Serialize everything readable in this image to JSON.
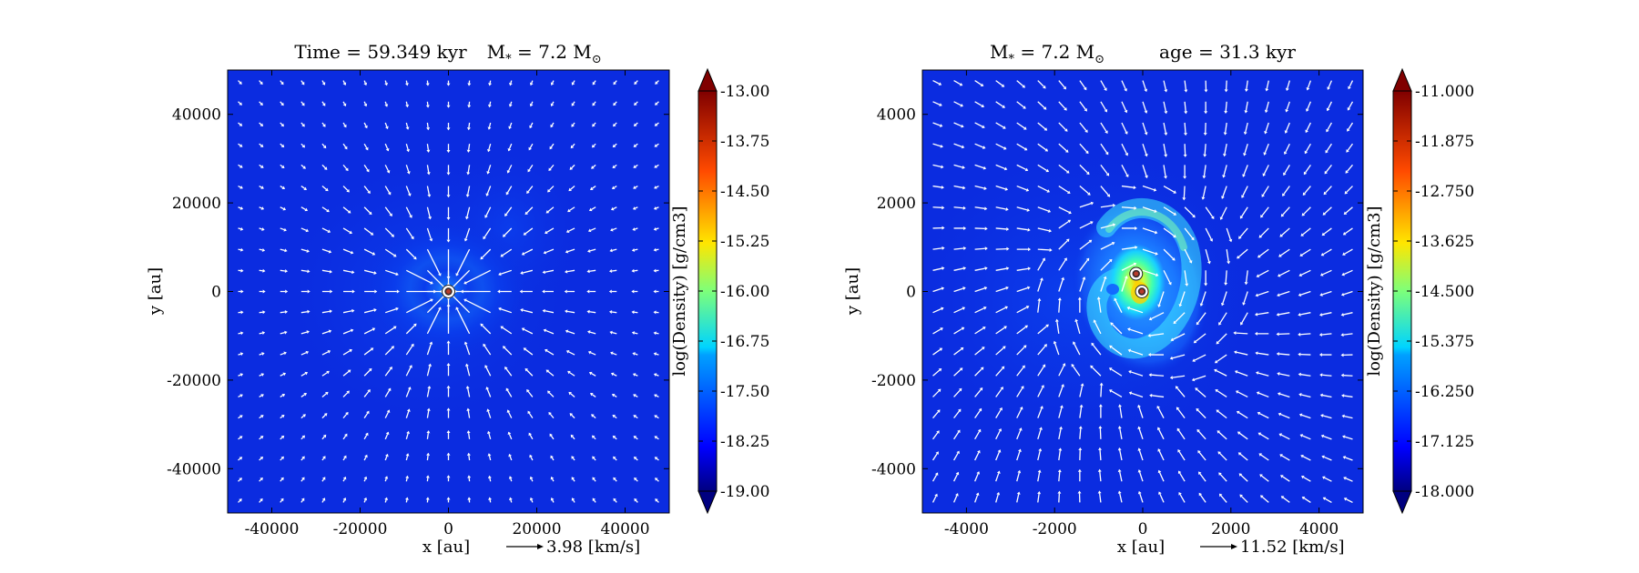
{
  "chart_data": [
    {
      "type": "heatmap",
      "title": "Time = 59.349 kyr    M$_*$ = 7.2 M$_\\odot$",
      "title_parts": {
        "time": "Time = 59.349 kyr",
        "mass": "M",
        "mass_sub": "*",
        "mass_value": " = 7.2 M",
        "mass_unit_sub": "⊙"
      },
      "xlabel": "x [au]",
      "ylabel": "y [au]",
      "xlim": [
        -50000,
        50000
      ],
      "ylim": [
        -50000,
        50000
      ],
      "xticks": [
        -40000,
        -20000,
        0,
        20000,
        40000
      ],
      "yticks": [
        40000,
        20000,
        0,
        -20000,
        -40000
      ],
      "xtick_labels": [
        "-40000",
        "-20000",
        "0",
        "20000",
        "40000"
      ],
      "ytick_labels": [
        "40000",
        "20000",
        "0",
        "-20000",
        "-40000"
      ],
      "colorbar": {
        "label": "log(Density) [g/cm3]",
        "range": [
          -19.0,
          -13.0
        ],
        "tick_labels": [
          "-13.00",
          "-13.75",
          "-14.50",
          "-15.25",
          "-16.00",
          "-16.75",
          "-17.50",
          "-18.25",
          "-19.00"
        ],
        "extend": "both"
      },
      "quiver_key": {
        "label": "3.98 [km/s]"
      },
      "sinks": [
        {
          "x": 0,
          "y": 0
        }
      ],
      "colormap": "jet"
    },
    {
      "type": "heatmap",
      "title": "M* = 7.2 M⊙    age = 31.3 kyr",
      "title_parts": {
        "mass": "M",
        "mass_sub": "*",
        "mass_value": " = 7.2 M",
        "mass_unit_sub": "⊙",
        "age": "age = 31.3 kyr"
      },
      "xlabel": "x [au]",
      "ylabel": "y [au]",
      "xlim": [
        -5000,
        5000
      ],
      "ylim": [
        -5000,
        5000
      ],
      "xticks": [
        -4000,
        -2000,
        0,
        2000,
        4000
      ],
      "yticks": [
        4000,
        2000,
        0,
        -2000,
        -4000
      ],
      "xtick_labels": [
        "-4000",
        "-2000",
        "0",
        "2000",
        "4000"
      ],
      "ytick_labels": [
        "4000",
        "2000",
        "0",
        "-2000",
        "-4000"
      ],
      "colorbar": {
        "label": "log(Density) [g/cm3]",
        "range": [
          -18.0,
          -11.0
        ],
        "tick_labels": [
          "-11.000",
          "-11.875",
          "-12.750",
          "-13.625",
          "-14.500",
          "-15.375",
          "-16.250",
          "-17.125",
          "-18.000"
        ],
        "extend": "both"
      },
      "quiver_key": {
        "label": "11.52 [km/s]"
      },
      "sinks": [
        {
          "x": -150,
          "y": 400
        },
        {
          "x": -20,
          "y": 0
        }
      ],
      "colormap": "jet"
    }
  ]
}
